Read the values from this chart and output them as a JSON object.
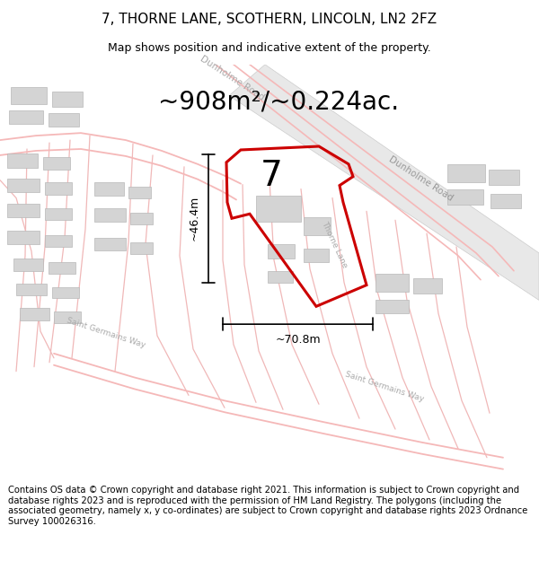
{
  "title": "7, THORNE LANE, SCOTHERN, LINCOLN, LN2 2FZ",
  "subtitle": "Map shows position and indicative extent of the property.",
  "area_text": "~908m²/~0.224ac.",
  "dimension_width": "~70.8m",
  "dimension_height": "~46.4m",
  "plot_number": "7",
  "footer": "Contains OS data © Crown copyright and database right 2021. This information is subject to Crown copyright and database rights 2023 and is reproduced with the permission of HM Land Registry. The polygons (including the associated geometry, namely x, y co-ordinates) are subject to Crown copyright and database rights 2023 Ordnance Survey 100026316.",
  "bg_color": "#ffffff",
  "road_color_light": "#f5b8b8",
  "road_color_mid": "#e8a0a0",
  "building_color": "#d4d4d4",
  "building_edge": "#b8b8b8",
  "plot_outline_color": "#cc0000",
  "road_label_color": "#aaaaaa",
  "title_fontsize": 11,
  "subtitle_fontsize": 9,
  "area_fontsize": 20,
  "plot_label_fontsize": 28,
  "footer_fontsize": 7.2,
  "dim_fontsize": 9
}
